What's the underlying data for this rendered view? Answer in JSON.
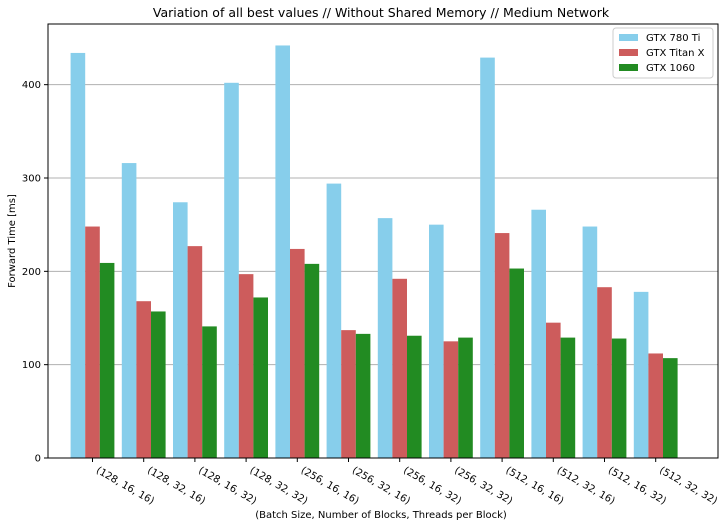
{
  "chart_data": {
    "type": "bar",
    "title": "Variation of all best values // Without Shared Memory // Medium Network",
    "xlabel": "(Batch Size, Number of Blocks, Threads per Block)",
    "ylabel": "Forward Time [ms]",
    "ylim": [
      0,
      465
    ],
    "yticks": [
      0,
      100,
      200,
      300,
      400
    ],
    "grid": "y",
    "legend": "top-right",
    "categories": [
      "(128, 16, 16)",
      "(128, 32, 16)",
      "(128, 16, 32)",
      "(128, 32, 32)",
      "(256, 16, 16)",
      "(256, 32, 16)",
      "(256, 16, 32)",
      "(256, 32, 32)",
      "(512, 16, 16)",
      "(512, 32, 16)",
      "(512, 16, 32)",
      "(512, 32, 32)"
    ],
    "series": [
      {
        "name": "GTX 780 Ti",
        "color": "#87ceeb",
        "values": [
          434,
          316,
          274,
          402,
          442,
          294,
          257,
          250,
          429,
          266,
          248,
          178
        ]
      },
      {
        "name": "GTX Titan X",
        "color": "#cd5c5c",
        "values": [
          248,
          168,
          227,
          197,
          224,
          137,
          192,
          125,
          241,
          145,
          183,
          112
        ]
      },
      {
        "name": "GTX 1060",
        "color": "#228b22",
        "values": [
          209,
          157,
          141,
          172,
          208,
          133,
          131,
          129,
          203,
          129,
          128,
          107
        ]
      }
    ]
  }
}
